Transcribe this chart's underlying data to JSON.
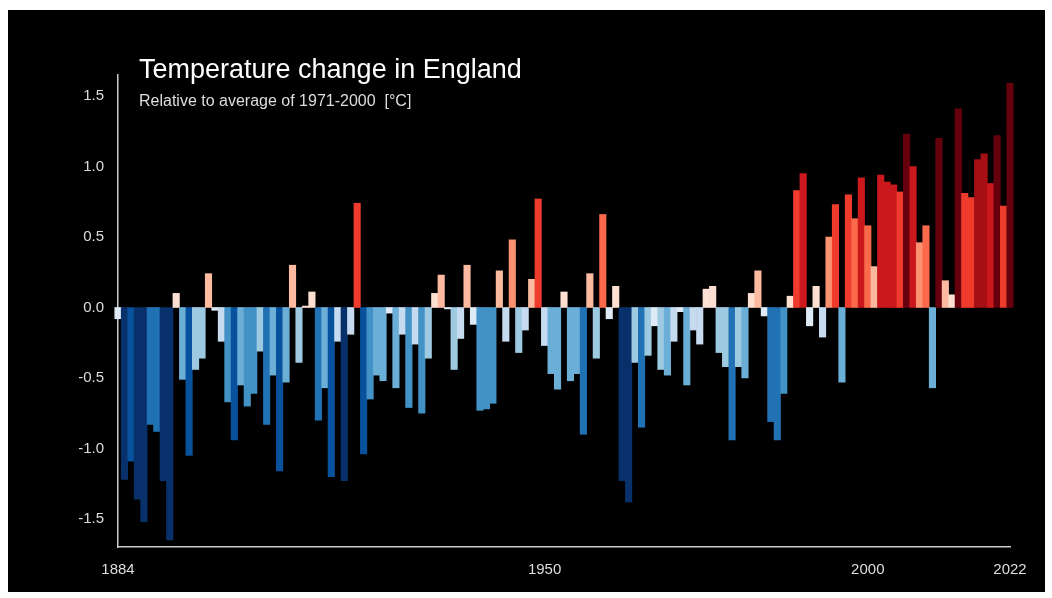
{
  "chart_data": {
    "type": "bar",
    "title": "Temperature change in England",
    "subtitle": "Relative to average of 1971-2000  [°C]",
    "x": [
      1884,
      1885,
      1886,
      1887,
      1888,
      1889,
      1890,
      1891,
      1892,
      1893,
      1894,
      1895,
      1896,
      1897,
      1898,
      1899,
      1900,
      1901,
      1902,
      1903,
      1904,
      1905,
      1906,
      1907,
      1908,
      1909,
      1910,
      1911,
      1912,
      1913,
      1914,
      1915,
      1916,
      1917,
      1918,
      1919,
      1920,
      1921,
      1922,
      1923,
      1924,
      1925,
      1926,
      1927,
      1928,
      1929,
      1930,
      1931,
      1932,
      1933,
      1934,
      1935,
      1936,
      1937,
      1938,
      1939,
      1940,
      1941,
      1942,
      1943,
      1944,
      1945,
      1946,
      1947,
      1948,
      1949,
      1950,
      1951,
      1952,
      1953,
      1954,
      1955,
      1956,
      1957,
      1958,
      1959,
      1960,
      1961,
      1962,
      1963,
      1964,
      1965,
      1966,
      1967,
      1968,
      1969,
      1970,
      1971,
      1972,
      1973,
      1974,
      1975,
      1976,
      1977,
      1978,
      1979,
      1980,
      1981,
      1982,
      1983,
      1984,
      1985,
      1986,
      1987,
      1988,
      1989,
      1990,
      1991,
      1992,
      1993,
      1994,
      1995,
      1996,
      1997,
      1998,
      1999,
      2000,
      2001,
      2002,
      2003,
      2004,
      2005,
      2006,
      2007,
      2008,
      2009,
      2010,
      2011,
      2012,
      2013,
      2014,
      2015,
      2016,
      2017,
      2018,
      2019,
      2020,
      2021,
      2022
    ],
    "values": [
      -0.08,
      -1.22,
      -1.09,
      -1.36,
      -1.52,
      -0.83,
      -0.88,
      -1.23,
      -1.65,
      0.1,
      -0.51,
      -1.05,
      -0.44,
      -0.36,
      0.24,
      -0.02,
      -0.24,
      -0.67,
      -0.94,
      -0.55,
      -0.7,
      -0.61,
      -0.31,
      -0.83,
      -0.48,
      -1.16,
      -0.53,
      0.3,
      -0.39,
      0.01,
      0.11,
      -0.8,
      -0.57,
      -1.2,
      -0.24,
      -1.23,
      -0.19,
      0.74,
      -1.04,
      -0.65,
      -0.48,
      -0.52,
      -0.04,
      -0.57,
      -0.19,
      -0.71,
      -0.26,
      -0.75,
      -0.36,
      0.1,
      0.23,
      -0.01,
      -0.44,
      -0.22,
      0.3,
      -0.12,
      -0.73,
      -0.72,
      -0.68,
      0.26,
      -0.24,
      0.48,
      -0.32,
      -0.16,
      0.2,
      0.77,
      -0.27,
      -0.47,
      -0.58,
      0.11,
      -0.52,
      -0.47,
      -0.9,
      0.24,
      -0.36,
      0.66,
      -0.08,
      0.15,
      -1.23,
      -1.38,
      -0.39,
      -0.85,
      -0.34,
      -0.13,
      -0.44,
      -0.48,
      -0.24,
      -0.03,
      -0.55,
      -0.16,
      -0.26,
      0.13,
      0.15,
      -0.32,
      -0.42,
      -0.94,
      -0.42,
      -0.5,
      0.1,
      0.26,
      -0.06,
      -0.81,
      -0.94,
      -0.61,
      0.08,
      0.83,
      0.95,
      -0.13,
      0.15,
      -0.21,
      0.5,
      0.73,
      -0.53,
      0.8,
      0.63,
      0.92,
      0.58,
      0.29,
      0.94,
      0.89,
      0.87,
      0.82,
      1.23,
      1.0,
      0.46,
      0.58,
      -0.57,
      1.2,
      0.19,
      0.09,
      1.41,
      0.81,
      0.78,
      1.05,
      1.09,
      0.88,
      1.22,
      0.72,
      1.59
    ],
    "colors": [
      "#deebf7",
      "#08306b",
      "#08519c",
      "#08306b",
      "#08306b",
      "#2171b5",
      "#2171b5",
      "#08306b",
      "#08306b",
      "#fee0d2",
      "#6baed6",
      "#08519c",
      "#9ecae1",
      "#9ecae1",
      "#fcbba1",
      "#deebf7",
      "#c6dbef",
      "#4292c6",
      "#08519c",
      "#6baed6",
      "#4292c6",
      "#4292c6",
      "#9ecae1",
      "#2171b5",
      "#6baed6",
      "#08519c",
      "#6baed6",
      "#fcbba1",
      "#9ecae1",
      "#fee0d2",
      "#fee0d2",
      "#2171b5",
      "#6baed6",
      "#08519c",
      "#c6dbef",
      "#08306b",
      "#c6dbef",
      "#ef3b2c",
      "#08519c",
      "#4292c6",
      "#6baed6",
      "#6baed6",
      "#deebf7",
      "#6baed6",
      "#c6dbef",
      "#4292c6",
      "#c6dbef",
      "#4292c6",
      "#9ecae1",
      "#fee0d2",
      "#fcbba1",
      "#deebf7",
      "#9ecae1",
      "#c6dbef",
      "#fcbba1",
      "#deebf7",
      "#4292c6",
      "#4292c6",
      "#4292c6",
      "#fcbba1",
      "#c6dbef",
      "#fc9272",
      "#9ecae1",
      "#c6dbef",
      "#fcbba1",
      "#ef3b2c",
      "#c6dbef",
      "#6baed6",
      "#6baed6",
      "#fee0d2",
      "#6baed6",
      "#6baed6",
      "#2171b5",
      "#fcbba1",
      "#9ecae1",
      "#fb6a4a",
      "#deebf7",
      "#fee0d2",
      "#08306b",
      "#08306b",
      "#9ecae1",
      "#2171b5",
      "#9ecae1",
      "#deebf7",
      "#9ecae1",
      "#6baed6",
      "#c6dbef",
      "#deebf7",
      "#6baed6",
      "#c6dbef",
      "#c6dbef",
      "#fee0d2",
      "#fee0d2",
      "#9ecae1",
      "#9ecae1",
      "#2171b5",
      "#9ecae1",
      "#6baed6",
      "#fee0d2",
      "#fcbba1",
      "#deebf7",
      "#2171b5",
      "#2171b5",
      "#4292c6",
      "#fee0d2",
      "#ef3b2c",
      "#cb181d",
      "#deebf7",
      "#fee0d2",
      "#c6dbef",
      "#fc9272",
      "#ef3b2c",
      "#6baed6",
      "#ef3b2c",
      "#fb6a4a",
      "#cb181d",
      "#fb6a4a",
      "#fcbba1",
      "#cb181d",
      "#cb181d",
      "#cb181d",
      "#ef3b2c",
      "#67000d",
      "#cb181d",
      "#fc9272",
      "#fb6a4a",
      "#6baed6",
      "#67000d",
      "#fcbba1",
      "#fee0d2",
      "#67000d",
      "#ef3b2c",
      "#ef3b2c",
      "#a50f15",
      "#a50f15",
      "#cb181d",
      "#67000d",
      "#ef3b2c",
      "#67000d"
    ],
    "xlim": [
      1884,
      2022
    ],
    "xticks": [
      1884,
      1950,
      2000,
      2022
    ],
    "ylim": [
      -1.7,
      1.65
    ],
    "yticks": [
      {
        "value": -1.5,
        "label": "-1.5"
      },
      {
        "value": -1,
        "label": "-1.0"
      },
      {
        "value": -0.5,
        "label": "-0.5"
      },
      {
        "value": 0,
        "label": "0.0"
      },
      {
        "value": 0.5,
        "label": "0.5"
      },
      {
        "value": 1,
        "label": "1.0"
      },
      {
        "value": 1.5,
        "label": "1.5"
      }
    ]
  }
}
